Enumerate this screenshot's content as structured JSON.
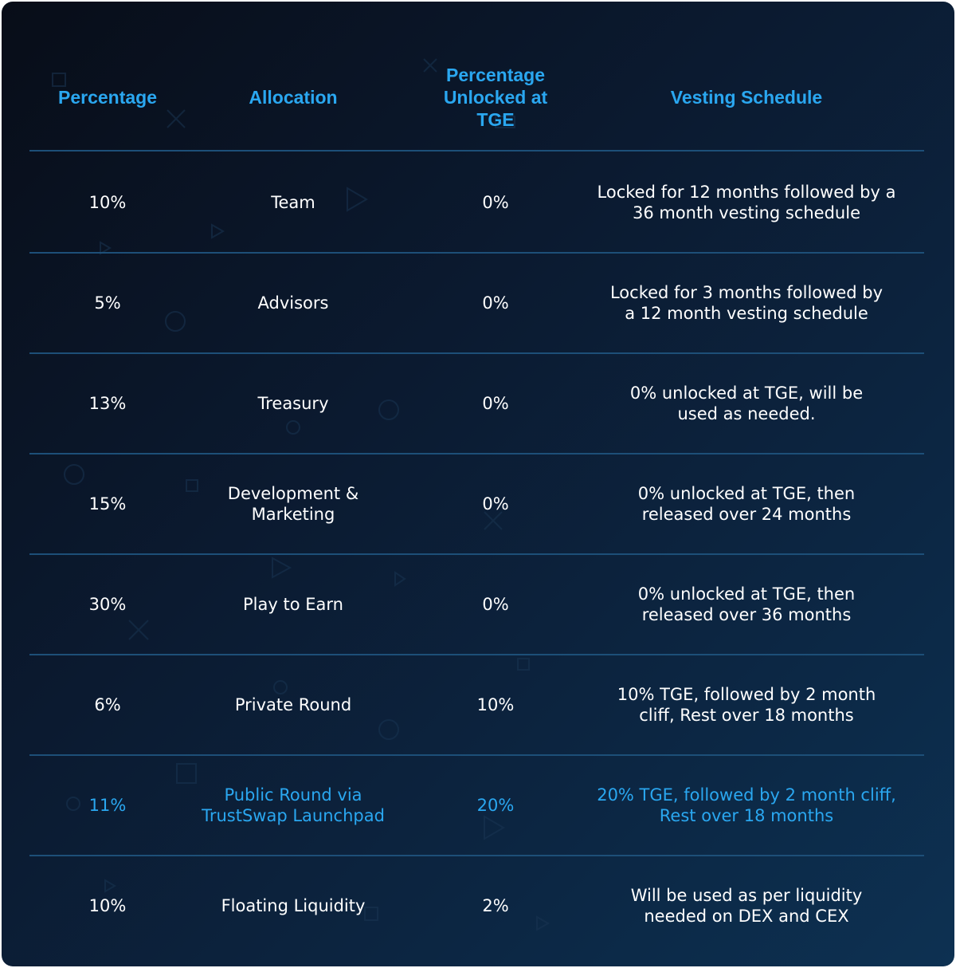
{
  "colors": {
    "accent": "#2aa7f0",
    "text": "#ffffff",
    "divider": "#1d4f78",
    "background_start": "#080d18",
    "background_end": "#0d3152"
  },
  "table": {
    "headers": [
      "Percentage",
      "Allocation",
      "Percentage Unlocked at TGE",
      "Vesting Schedule"
    ],
    "rows": [
      {
        "percentage": "10%",
        "allocation": "Team",
        "unlocked_at_tge": "0%",
        "vesting_schedule": "Locked for 12 months followed by a 36 month vesting schedule",
        "highlighted": false
      },
      {
        "percentage": "5%",
        "allocation": "Advisors",
        "unlocked_at_tge": "0%",
        "vesting_schedule": "Locked for 3 months followed by a 12 month vesting schedule",
        "highlighted": false
      },
      {
        "percentage": "13%",
        "allocation": "Treasury",
        "unlocked_at_tge": "0%",
        "vesting_schedule": "0% unlocked at TGE, will be used as needed.",
        "highlighted": false
      },
      {
        "percentage": "15%",
        "allocation": "Development & Marketing",
        "unlocked_at_tge": "0%",
        "vesting_schedule": "0% unlocked at TGE, then released over 24 months",
        "highlighted": false
      },
      {
        "percentage": "30%",
        "allocation": "Play to Earn",
        "unlocked_at_tge": "0%",
        "vesting_schedule": "0% unlocked at TGE, then released over 36 months",
        "highlighted": false
      },
      {
        "percentage": "6%",
        "allocation": "Private Round",
        "unlocked_at_tge": "10%",
        "vesting_schedule": "10% TGE, followed by 2 month cliff, Rest over 18 months",
        "highlighted": false
      },
      {
        "percentage": "11%",
        "allocation": "Public Round via TrustSwap Launchpad",
        "unlocked_at_tge": "20%",
        "vesting_schedule": "20% TGE, followed by 2 month cliff, Rest over 18 months",
        "highlighted": true
      },
      {
        "percentage": "10%",
        "allocation": "Floating Liquidity",
        "unlocked_at_tge": "2%",
        "vesting_schedule": "Will be used as per liquidity needed on DEX and CEX",
        "highlighted": false
      }
    ]
  }
}
